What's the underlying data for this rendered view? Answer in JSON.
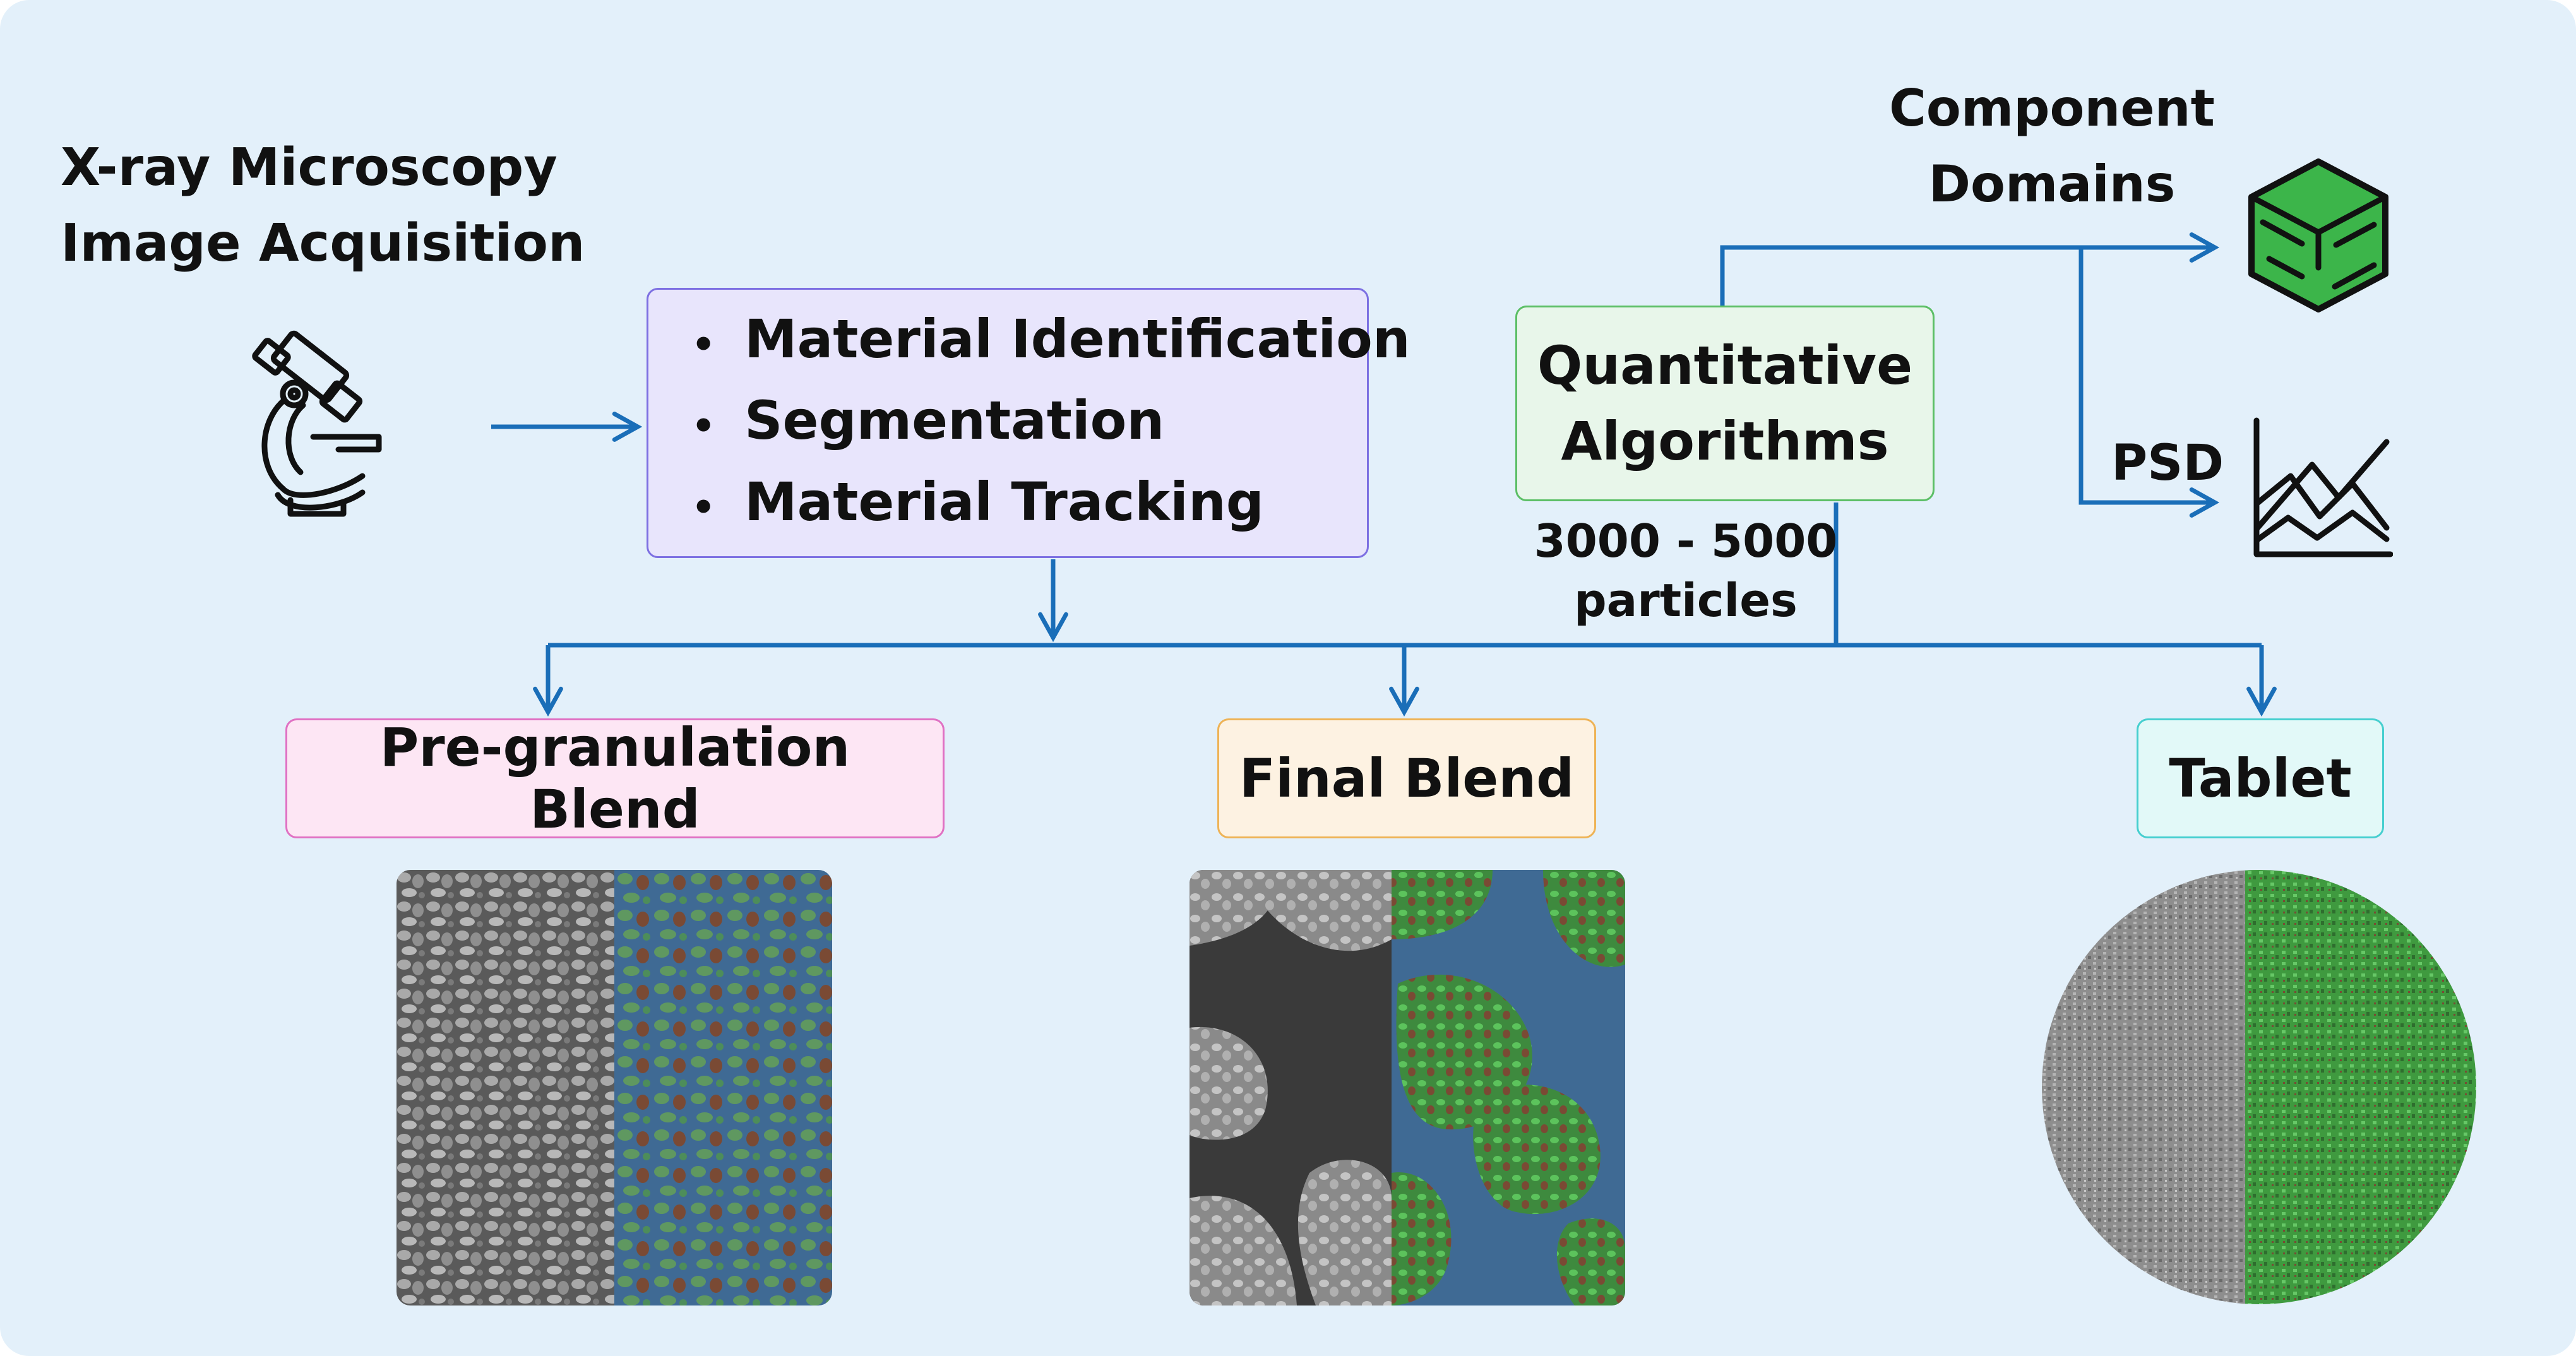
{
  "acquisition": {
    "line1": "X-ray Microscopy",
    "line2": "Image Acquisition"
  },
  "process_steps": [
    "Material Identification",
    "Segmentation",
    "Material Tracking"
  ],
  "bullet": "•",
  "quantitative": {
    "line1": "Quantitative",
    "line2": "Algorithms"
  },
  "particles": {
    "line1": "3000 - 5000",
    "line2": "particles"
  },
  "component_domains": {
    "line1": "Component",
    "line2": "Domains"
  },
  "psd_label": "PSD",
  "stages": [
    "Pre-granulation Blend",
    "Final Blend",
    "Tablet"
  ],
  "icons": {
    "microscope": "microscope-icon",
    "component_domains": "cube-icon",
    "psd": "line-chart-icon"
  },
  "colors": {
    "background": "#e3f0fa",
    "arrow": "#1a6eb8",
    "process_fill": "#e8e5fc",
    "process_border": "#7d70e2",
    "quant_fill": "#e8f6ea",
    "quant_border": "#5cbf66",
    "pre_fill": "#fde6f4",
    "pre_border": "#e071c3",
    "final_fill": "#fdf2e2",
    "final_border": "#eeb356",
    "tablet_fill": "#e2f9f8",
    "tablet_border": "#46cfcf",
    "cube_green": "#3cb54a"
  }
}
